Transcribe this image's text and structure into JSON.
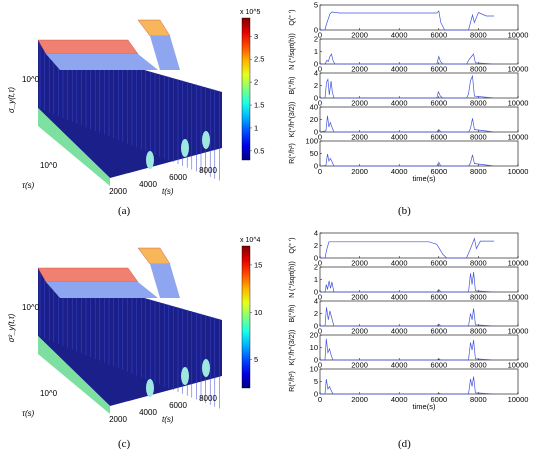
{
  "captions": {
    "a": "(a)",
    "b": "(b)",
    "c": "(c)",
    "d": "(d)"
  },
  "surface_a": {
    "z_label": "σ_y(t,τ)",
    "z_tick": "10^0",
    "tau_label": "τ(s)",
    "tau_tick": "10^0",
    "t_label": "t(s)",
    "t_ticks": [
      "2000",
      "4000",
      "6000",
      "8000"
    ],
    "colorbar_exponent": "x 10^5",
    "colorbar_ticks": [
      "0.5",
      "1",
      "1.5",
      "2",
      "2.5",
      "3"
    ],
    "colorbar_range": [
      0.3,
      3.4
    ]
  },
  "surface_c": {
    "z_label": "σ²_y(t,τ)",
    "z_tick": "10^0",
    "tau_label": "τ(s)",
    "tau_tick": "10^0",
    "t_label": "t(s)",
    "t_ticks": [
      "2000",
      "4000",
      "6000",
      "8000"
    ],
    "colorbar_exponent": "x 10^4",
    "colorbar_ticks": [
      "5",
      "10",
      "15"
    ],
    "colorbar_range": [
      2,
      17
    ]
  },
  "chart_data": [
    {
      "type": "line",
      "panel": "b",
      "xlabel": "time(s)",
      "x_ticks": [
        "0",
        "2000",
        "4000",
        "6000",
        "8000",
        "10000"
      ],
      "xlim": [
        0,
        10000
      ],
      "subplots": [
        {
          "ylabel": "Q(° ′)",
          "ylim": [
            0,
            5
          ],
          "y_ticks": [
            "0",
            "5"
          ],
          "x": [
            0,
            250,
            300,
            500,
            600,
            1000,
            3000,
            5900,
            6000,
            6100,
            6300,
            7400,
            7500,
            7700,
            7800,
            8000,
            8400,
            8800
          ],
          "y": [
            0,
            0,
            0.8,
            3.2,
            3.6,
            3.4,
            3.4,
            3.4,
            3.8,
            1.5,
            0,
            0,
            0,
            3,
            1.5,
            3.5,
            2.8,
            2.8
          ]
        },
        {
          "ylabel": "N (°/sqrt(h))",
          "ylim": [
            0,
            2
          ],
          "y_ticks": [
            "0",
            "1",
            "2"
          ],
          "x": [
            0,
            250,
            350,
            420,
            500,
            580,
            650,
            750,
            5900,
            6000,
            6080,
            6200,
            7400,
            7550,
            7650,
            7750,
            7850,
            8800
          ],
          "y": [
            0,
            0,
            0.3,
            0.2,
            0.6,
            0.8,
            0.3,
            0,
            0,
            0.6,
            0.2,
            0,
            0,
            0.4,
            0.6,
            0.8,
            0.1,
            0
          ]
        },
        {
          "ylabel": "B(°/h)",
          "ylim": [
            0,
            4
          ],
          "y_ticks": [
            "0",
            "2",
            "4"
          ],
          "x": [
            0,
            250,
            330,
            400,
            470,
            560,
            620,
            700,
            5900,
            5980,
            6080,
            6200,
            7400,
            7500,
            7600,
            7700,
            7800,
            8800
          ],
          "y": [
            0,
            0,
            2.5,
            3,
            0.5,
            2.7,
            1,
            0,
            0,
            1,
            0.3,
            0,
            0,
            0.6,
            2.8,
            3.5,
            0.3,
            0
          ]
        },
        {
          "ylabel": "K(°/h^(3/2))",
          "ylim": [
            0,
            40
          ],
          "y_ticks": [
            "0",
            "20",
            "40"
          ],
          "x": [
            0,
            300,
            380,
            450,
            520,
            600,
            700,
            5900,
            6000,
            6100,
            7500,
            7600,
            7700,
            7800,
            8800
          ],
          "y": [
            0,
            2,
            26,
            8,
            15,
            8,
            0,
            0,
            4,
            0,
            0,
            6,
            22,
            4,
            0
          ]
        },
        {
          "ylabel": "R(°/h²)",
          "ylim": [
            0,
            100
          ],
          "y_ticks": [
            "0",
            "50",
            "100"
          ],
          "x": [
            0,
            300,
            380,
            450,
            520,
            600,
            700,
            5900,
            6000,
            6100,
            7500,
            7600,
            7700,
            7800,
            8800
          ],
          "y": [
            0,
            2,
            48,
            20,
            30,
            18,
            0,
            0,
            15,
            0,
            0,
            12,
            45,
            10,
            0
          ]
        }
      ]
    },
    {
      "type": "line",
      "panel": "d",
      "xlabel": "time(s)",
      "x_ticks": [
        "0",
        "2000",
        "4000",
        "6000",
        "8000",
        "10000"
      ],
      "xlim": [
        0,
        10000
      ],
      "subplots": [
        {
          "ylabel": "Q(° ′)",
          "ylim": [
            0,
            4
          ],
          "y_ticks": [
            "0",
            "2",
            "4"
          ],
          "x": [
            0,
            250,
            330,
            450,
            600,
            3000,
            5500,
            5900,
            6200,
            6400,
            7400,
            7600,
            7800,
            7900,
            8100,
            8500,
            8800
          ],
          "y": [
            0,
            0,
            1.2,
            2.6,
            2.6,
            2.6,
            2.6,
            2.2,
            0.6,
            0,
            0,
            1.5,
            3.1,
            1.5,
            2.7,
            2.7,
            2.7
          ]
        },
        {
          "ylabel": "N (°/sqrt(h))",
          "ylim": [
            0,
            2
          ],
          "y_ticks": [
            "0",
            "1",
            "2"
          ],
          "x": [
            0,
            250,
            320,
            380,
            460,
            530,
            600,
            700,
            5900,
            6000,
            6100,
            7500,
            7600,
            7680,
            7760,
            7850,
            8800
          ],
          "y": [
            0,
            0,
            0.6,
            0.2,
            0.9,
            0.3,
            0.8,
            0,
            0,
            0.2,
            0,
            0,
            1.5,
            0.6,
            1.6,
            0.1,
            0
          ]
        },
        {
          "ylabel": "B(°/h)",
          "ylim": [
            0,
            4
          ],
          "y_ticks": [
            "0",
            "2",
            "4"
          ],
          "x": [
            0,
            250,
            330,
            420,
            500,
            600,
            700,
            5900,
            6000,
            6100,
            7500,
            7600,
            7680,
            7760,
            7850,
            8800
          ],
          "y": [
            0,
            0,
            3,
            1,
            2.4,
            1.2,
            0,
            0,
            0.3,
            0,
            0,
            2,
            1,
            2.8,
            0.2,
            0
          ]
        },
        {
          "ylabel": "K(°/h^(3/2))",
          "ylim": [
            0,
            20
          ],
          "y_ticks": [
            "0",
            "10",
            "20"
          ],
          "x": [
            0,
            250,
            320,
            400,
            480,
            560,
            650,
            5900,
            6000,
            6100,
            7500,
            7600,
            7680,
            7760,
            7850,
            8800
          ],
          "y": [
            0,
            0,
            17,
            6,
            9,
            4,
            0,
            0,
            1,
            0,
            0,
            14,
            8,
            16,
            1,
            0
          ]
        },
        {
          "ylabel": "R(°/h²)",
          "ylim": [
            0,
            10
          ],
          "y_ticks": [
            "0",
            "5",
            "10"
          ],
          "x": [
            0,
            250,
            320,
            400,
            480,
            560,
            650,
            5900,
            6000,
            6100,
            7500,
            7600,
            7680,
            7760,
            7850,
            8800
          ],
          "y": [
            0,
            0,
            6,
            2,
            3,
            1.5,
            0,
            0,
            0.3,
            0,
            0,
            6,
            3,
            7,
            0.5,
            0
          ]
        }
      ]
    }
  ]
}
